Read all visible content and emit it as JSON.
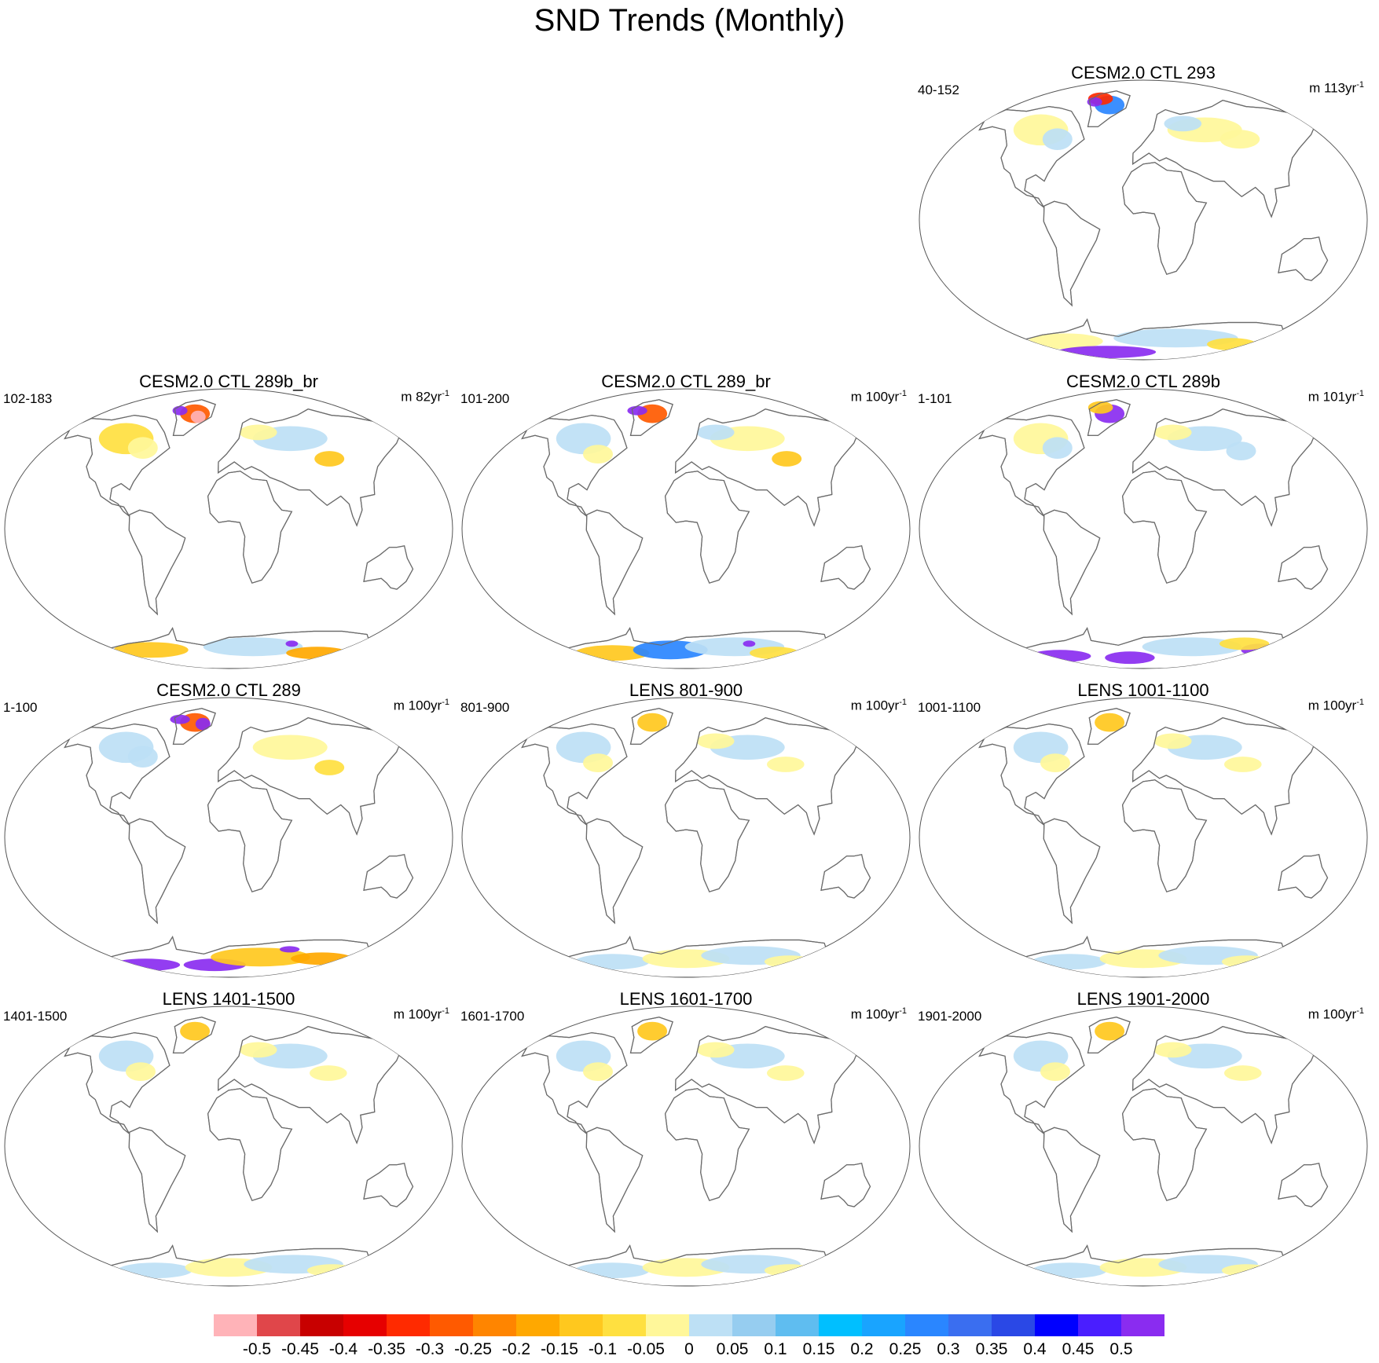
{
  "title": "SND Trends (Monthly)",
  "panels": [
    {
      "title": "CESM2.0 CTL 293",
      "range": "40-152",
      "units_prefix": "m 113yr",
      "units_exp": "-1",
      "scheme": "strong-blue"
    },
    {
      "title": "CESM2.0 CTL 289b_br",
      "range": "102-183",
      "units_prefix": "m 82yr",
      "units_exp": "-1",
      "scheme": "warm"
    },
    {
      "title": "CESM2.0 CTL 289_br",
      "range": "101-200",
      "units_prefix": "m 100yr",
      "units_exp": "-1",
      "scheme": "mixed"
    },
    {
      "title": "CESM2.0 CTL 289b",
      "range": "1-101",
      "units_prefix": "m 101yr",
      "units_exp": "-1",
      "scheme": "purple"
    },
    {
      "title": "CESM2.0 CTL 289",
      "range": "1-100",
      "units_prefix": "m 100yr",
      "units_exp": "-1",
      "scheme": "warm-purple"
    },
    {
      "title": "LENS 801-900",
      "range": "801-900",
      "units_prefix": "m 100yr",
      "units_exp": "-1",
      "scheme": "lens"
    },
    {
      "title": "LENS 1001-1100",
      "range": "1001-1100",
      "units_prefix": "m 100yr",
      "units_exp": "-1",
      "scheme": "lens"
    },
    {
      "title": "LENS 1401-1500",
      "range": "1401-1500",
      "units_prefix": "m 100yr",
      "units_exp": "-1",
      "scheme": "lens"
    },
    {
      "title": "LENS 1601-1700",
      "range": "1601-1700",
      "units_prefix": "m 100yr",
      "units_exp": "-1",
      "scheme": "lens"
    },
    {
      "title": "LENS 1901-2000",
      "range": "1901-2000",
      "units_prefix": "m 100yr",
      "units_exp": "-1",
      "scheme": "lens"
    }
  ],
  "colorbar": {
    "colors": [
      "#ffb3b8",
      "#e0464a",
      "#c80000",
      "#e60000",
      "#ff2a00",
      "#ff5a00",
      "#ff8500",
      "#ffa800",
      "#ffc81e",
      "#ffe040",
      "#fff79a",
      "#bde0f5",
      "#96cdf0",
      "#5fbdf0",
      "#00bfff",
      "#19a4ff",
      "#2a86ff",
      "#3a6ef0",
      "#2a48e6",
      "#0000ff",
      "#4a1eff",
      "#8a2cf0"
    ],
    "labels": [
      "-0.5",
      "-0.45",
      "-0.4",
      "-0.35",
      "-0.3",
      "-0.25",
      "-0.2",
      "-0.15",
      "-0.1",
      "-0.05",
      "0",
      "0.05",
      "0.1",
      "0.15",
      "0.2",
      "0.25",
      "0.3",
      "0.35",
      "0.4",
      "0.45",
      "0.5"
    ]
  }
}
